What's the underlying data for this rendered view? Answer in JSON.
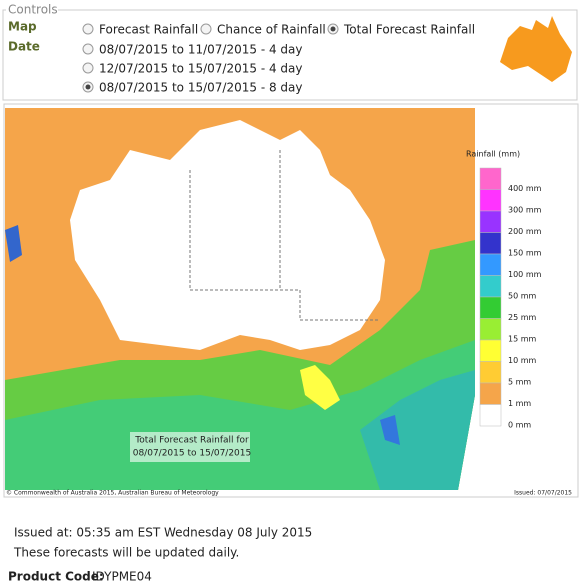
{
  "controls": {
    "title": "Controls",
    "map_label": "Map",
    "date_label": "Date",
    "map_options": [
      {
        "label": "Forecast Rainfall",
        "selected": false
      },
      {
        "label": "Chance of Rainfall",
        "selected": false
      },
      {
        "label": "Total Forecast Rainfall",
        "selected": true
      }
    ],
    "date_options": [
      {
        "label": "08/07/2015 to 11/07/2015 - 4 day",
        "selected": false
      },
      {
        "label": "12/07/2015 to 15/07/2015 - 4 day",
        "selected": false
      },
      {
        "label": "08/07/2015 to 15/07/2015 - 8 day",
        "selected": true
      }
    ]
  },
  "map": {
    "caption_lines": [
      "Total Forecast Rainfall for",
      "08/07/2015 to 15/07/2015"
    ],
    "legend": {
      "title": "Rainfall (mm)",
      "items": [
        {
          "label": "400 mm",
          "color": "#ff66cc"
        },
        {
          "label": "300 mm",
          "color": "#ff33ff"
        },
        {
          "label": "200 mm",
          "color": "#9933ff"
        },
        {
          "label": "150 mm",
          "color": "#3333cc"
        },
        {
          "label": "100 mm",
          "color": "#3399ff"
        },
        {
          "label": "50 mm",
          "color": "#33cccc"
        },
        {
          "label": "25 mm",
          "color": "#33cc33"
        },
        {
          "label": "15 mm",
          "color": "#99ee33"
        },
        {
          "label": "10 mm",
          "color": "#ffff33"
        },
        {
          "label": "5 mm",
          "color": "#ffcc33"
        },
        {
          "label": "1 mm",
          "color": "#f5a54a"
        },
        {
          "label": "0 mm",
          "color": "#ffffff"
        }
      ]
    },
    "copyright": "© Commonwealth of Australia 2015, Australian Bureau of Meteorology",
    "issued": "Issued: 07/07/2015"
  },
  "footer": {
    "issued_text": "Issued at: 05:35 am EST Wednesday 08 July 2015",
    "update_note": "These forecasts will be updated daily.",
    "product_code_label": "Product Code:",
    "product_code": "IDYPME04"
  }
}
